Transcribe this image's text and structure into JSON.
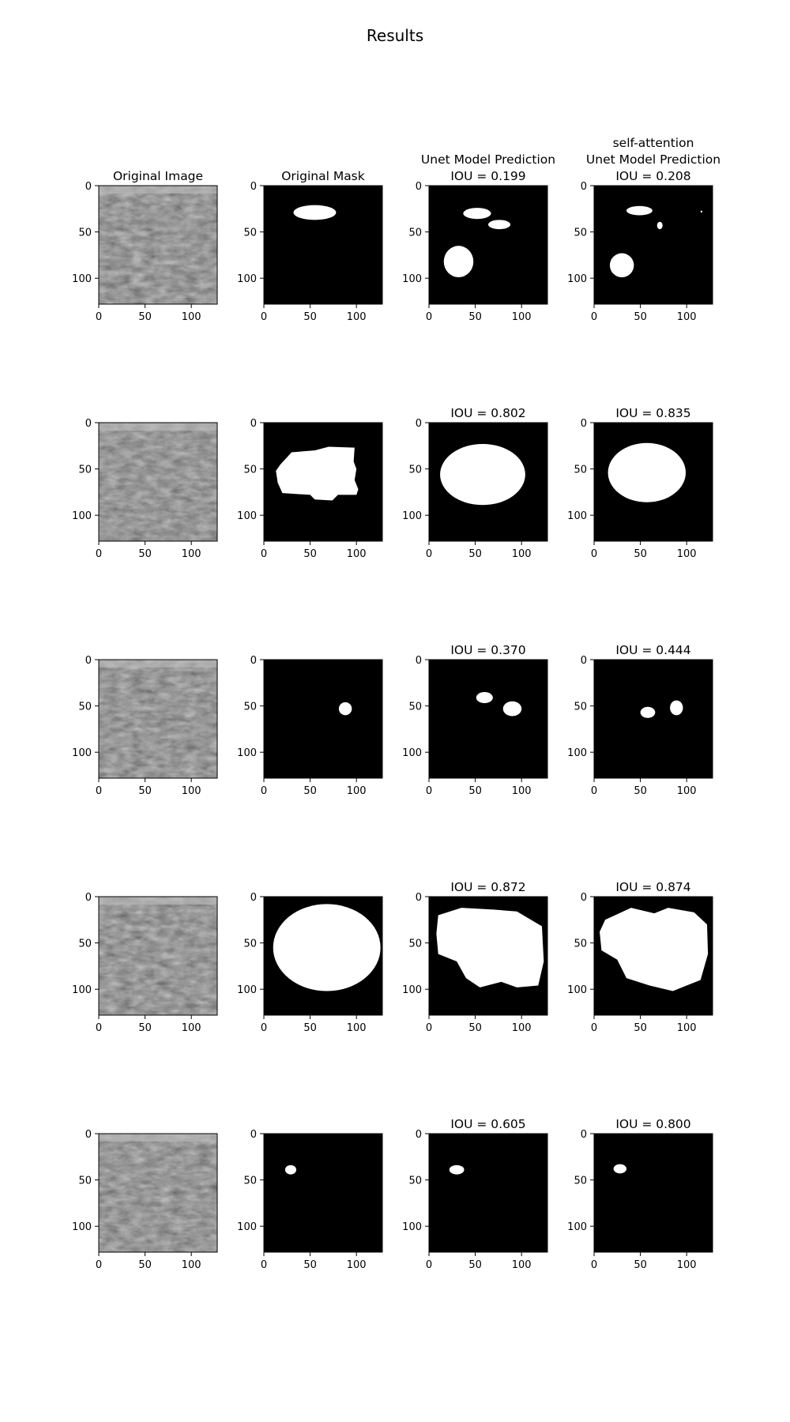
{
  "figure": {
    "title": "Results",
    "columns": [
      {
        "header": [
          "Original Image"
        ],
        "kind": "ultrasound"
      },
      {
        "header": [
          "Original Mask"
        ],
        "kind": "mask"
      },
      {
        "header": [
          "Unet Model Prediction"
        ],
        "kind": "mask"
      },
      {
        "header": [
          "self-attention",
          "Unet Model Prediction"
        ],
        "kind": "mask"
      }
    ],
    "axis_ticks": {
      "x": [
        "0",
        "50",
        "100"
      ],
      "y": [
        "0",
        "50",
        "100"
      ]
    },
    "rows": [
      {
        "iou": [
          "IOU = 0.199",
          "IOU = 0.208"
        ]
      },
      {
        "iou": [
          "IOU = 0.802",
          "IOU = 0.835"
        ]
      },
      {
        "iou": [
          "IOU = 0.370",
          "IOU = 0.444"
        ]
      },
      {
        "iou": [
          "IOU = 0.872",
          "IOU = 0.874"
        ]
      },
      {
        "iou": [
          "IOU = 0.605",
          "IOU = 0.800"
        ]
      }
    ],
    "colors": {
      "mask_background": "#000000",
      "mask_foreground": "#ffffff",
      "ultrasound_tone": "#6e6e6e"
    }
  }
}
